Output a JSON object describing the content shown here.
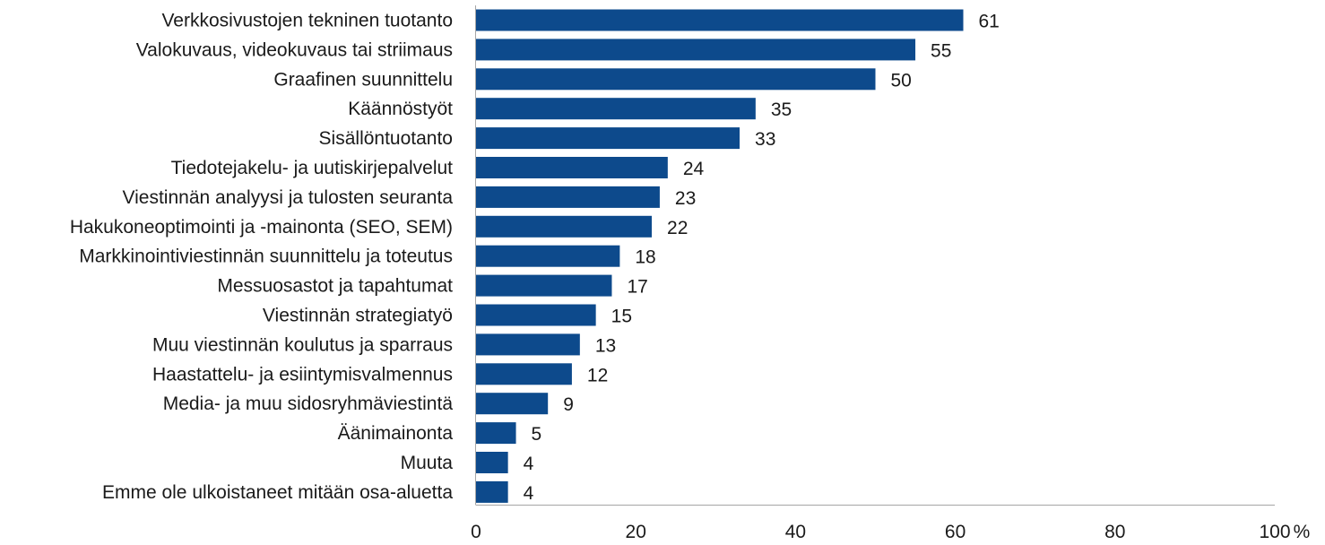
{
  "chart_data": {
    "type": "bar",
    "orientation": "horizontal",
    "categories": [
      "Verkkosivustojen tekninen tuotanto",
      "Valokuvaus, videokuvaus tai striimaus",
      "Graafinen suunnittelu",
      "Käännöstyöt",
      "Sisällöntuotanto",
      "Tiedotejakelu- ja uutiskirjepalvelut",
      "Viestinnän analyysi ja tulosten seuranta",
      "Hakukoneoptimointi ja -mainonta (SEO, SEM)",
      "Markkinointiviestinnän suunnittelu ja toteutus",
      "Messuosastot ja tapahtumat",
      "Viestinnän strategiatyö",
      "Muu viestinnän koulutus ja sparraus",
      "Haastattelu- ja esiintymisvalmennus",
      "Media- ja muu sidosryhmäviestintä",
      "Äänimainonta",
      "Muuta",
      "Emme ole ulkoistaneet mitään osa-aluetta"
    ],
    "values": [
      61,
      55,
      50,
      35,
      33,
      24,
      23,
      22,
      18,
      17,
      15,
      13,
      12,
      9,
      5,
      4,
      4
    ],
    "data_labels": [
      "61",
      "55",
      "50",
      "35",
      "33",
      "24",
      "23",
      "22",
      "18",
      "17",
      "15",
      "13",
      "12",
      "9",
      "5",
      "4",
      "4"
    ],
    "xlim": [
      0,
      100
    ],
    "x_ticks": [
      "0",
      "20",
      "40",
      "60",
      "80",
      "100"
    ],
    "x_unit": "%",
    "bar_color": "#0d4a8c",
    "axis_color": "#a6a6a6",
    "grid": false,
    "legend": "none"
  }
}
